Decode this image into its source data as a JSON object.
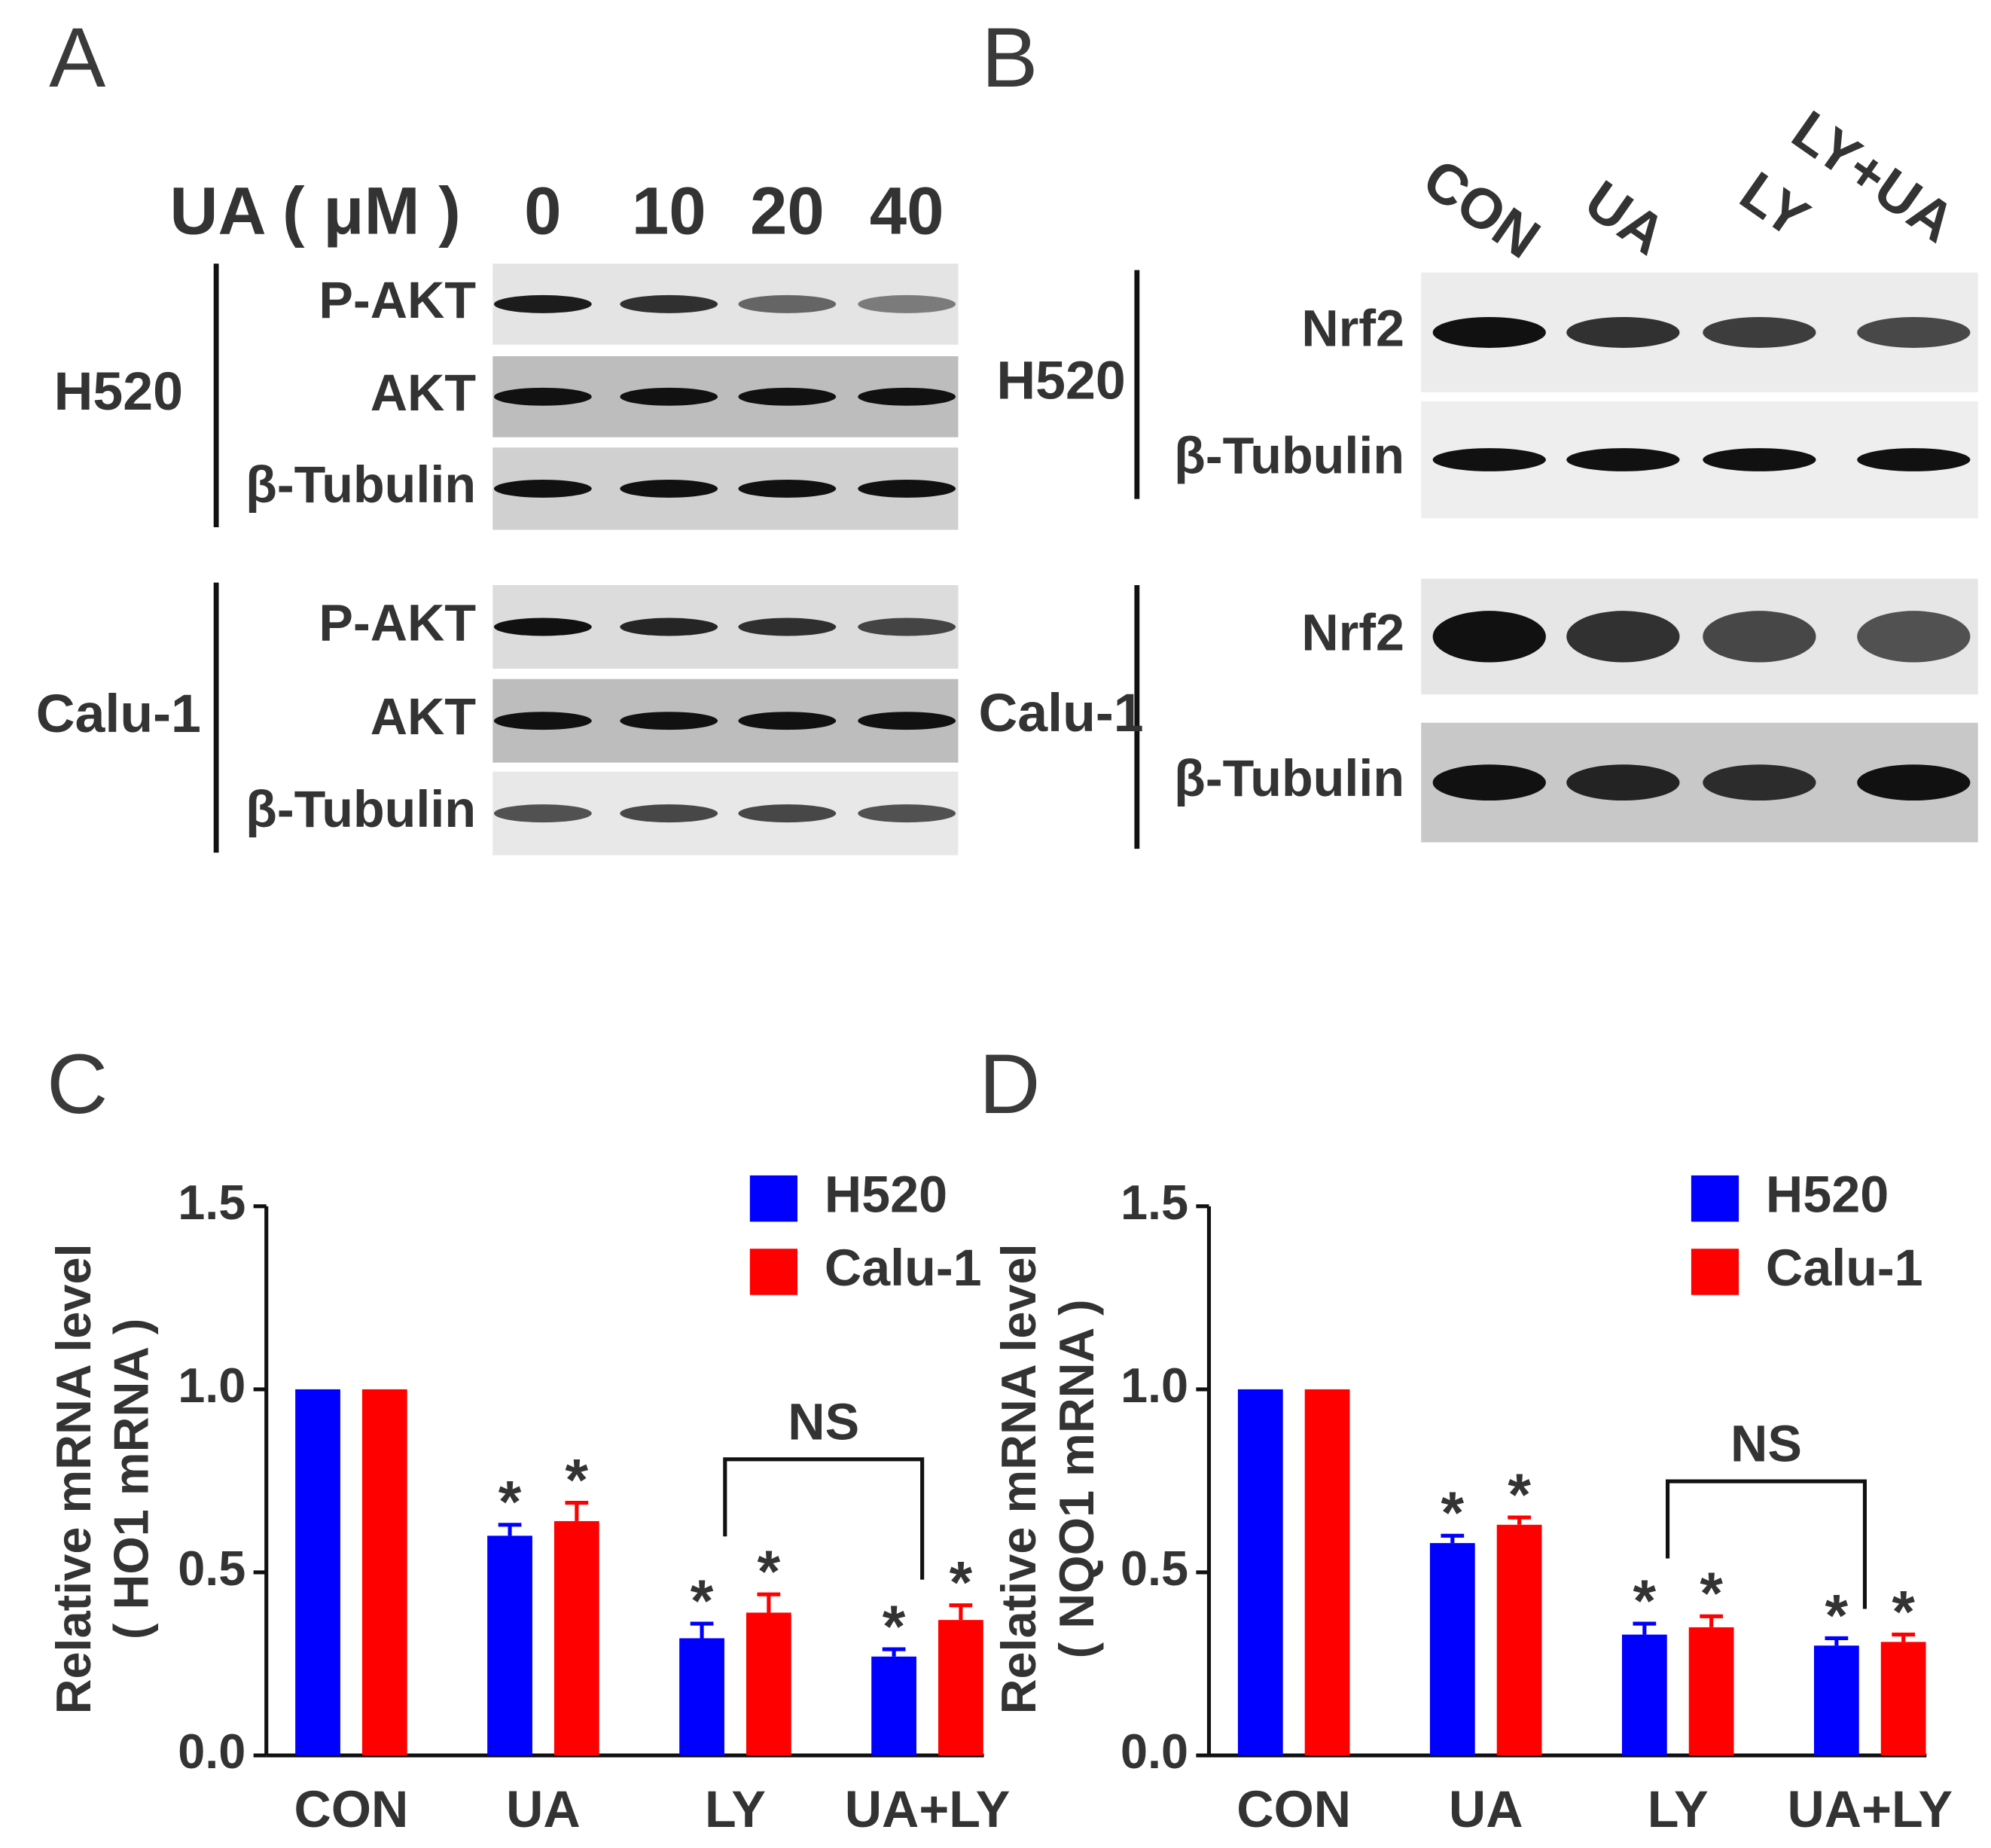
{
  "panel_labels": [
    "A",
    "B",
    "C",
    "D"
  ],
  "blot_a": {
    "header": "UA ( μM )",
    "lanes": [
      "0",
      "10",
      "20",
      "40"
    ],
    "groups": [
      {
        "name": "H520",
        "rows": [
          "P-AKT",
          "AKT",
          "β-Tubulin"
        ]
      },
      {
        "name": "Calu-1",
        "rows": [
          "P-AKT",
          "AKT",
          "β-Tubulin"
        ]
      }
    ]
  },
  "blot_b": {
    "lanes": [
      "CON",
      "UA",
      "LY",
      "LY+UA"
    ],
    "groups": [
      {
        "name": "H520",
        "rows": [
          "Nrf2",
          "β-Tubulin"
        ]
      },
      {
        "name": "Calu-1",
        "rows": [
          "Nrf2",
          "β-Tubulin"
        ]
      }
    ]
  },
  "chart_data": [
    {
      "type": "bar",
      "ylabel": [
        "Relative mRNA level",
        "( HO1 mRNA )"
      ],
      "categories": [
        "CON",
        "UA",
        "LY",
        "UA+LY"
      ],
      "series": [
        {
          "name": "H520",
          "color": "#0000ff",
          "values": [
            1,
            0.6,
            0.32,
            0.27
          ],
          "errors": [
            null,
            0.03,
            0.04,
            0.02
          ],
          "labels": [
            null,
            "*",
            "*",
            "*"
          ]
        },
        {
          "name": "Calu-1",
          "color": "#ff0000",
          "values": [
            1,
            0.64,
            0.39,
            0.37
          ],
          "errors": [
            null,
            0.05,
            0.05,
            0.04
          ],
          "labels": [
            null,
            "*",
            "*",
            "*"
          ]
        }
      ],
      "ylim": [
        0,
        1.5
      ],
      "yticks": [
        {
          "value": 0,
          "label": "0.0"
        },
        0.5,
        {
          "value": 1,
          "label": "1.0"
        },
        1.5
      ],
      "annotation": "NS"
    },
    {
      "type": "bar",
      "ylabel": [
        "Relative mRNA level",
        "( NQO1 mRNA )"
      ],
      "categories": [
        "CON",
        "UA",
        "LY",
        "UA+LY"
      ],
      "series": [
        {
          "name": "H520",
          "color": "#0000ff",
          "values": [
            1,
            0.58,
            0.33,
            0.3
          ],
          "errors": [
            null,
            0.02,
            0.03,
            0.02
          ],
          "labels": [
            null,
            "*",
            "*",
            "*"
          ]
        },
        {
          "name": "Calu-1",
          "color": "#ff0000",
          "values": [
            1,
            0.63,
            0.35,
            0.31
          ],
          "errors": [
            null,
            0.02,
            0.03,
            0.02
          ],
          "labels": [
            null,
            "*",
            "*",
            "*"
          ]
        }
      ],
      "ylim": [
        0,
        1.5
      ],
      "yticks": [
        {
          "value": 0,
          "label": "0.0"
        },
        0.5,
        {
          "value": 1,
          "label": "1.0"
        },
        1.5
      ],
      "annotation": "NS"
    }
  ]
}
